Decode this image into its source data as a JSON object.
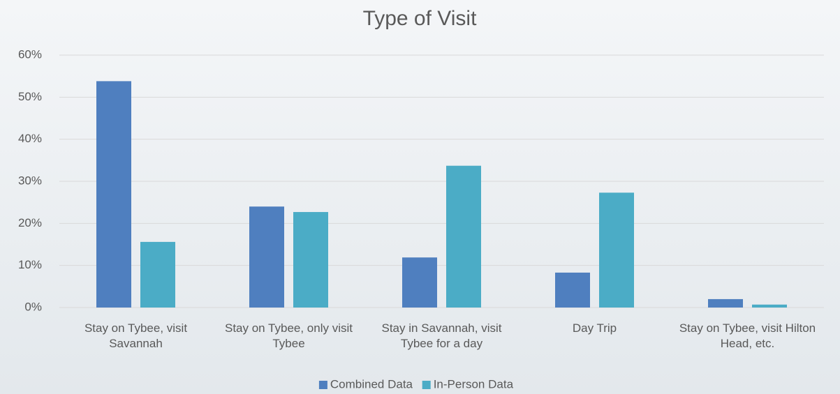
{
  "chart_data": {
    "type": "bar",
    "title": "Type of Visit",
    "categories": [
      "Stay on Tybee, visit Savannah",
      "Stay on Tybee, only visit Tybee",
      "Stay in Savannah, visit Tybee for a day",
      "Day Trip",
      "Stay on Tybee, visit Hilton Head, etc."
    ],
    "series": [
      {
        "name": "Combined Data",
        "color": "#4f7fbf",
        "values": [
          53.8,
          24,
          11.9,
          8.3,
          2
        ]
      },
      {
        "name": "In-Person Data",
        "color": "#4bacc6",
        "values": [
          15.6,
          22.7,
          33.7,
          27.3,
          0.7
        ]
      }
    ],
    "ylim": [
      0,
      60
    ],
    "yticks": [
      {
        "value": 0,
        "label": "0%"
      },
      {
        "value": 10,
        "label": "10%"
      },
      {
        "value": 20,
        "label": "20%"
      },
      {
        "value": 30,
        "label": "30%"
      },
      {
        "value": 40,
        "label": "40%"
      },
      {
        "value": 50,
        "label": "50%"
      },
      {
        "value": 60,
        "label": "60%"
      }
    ],
    "grid": true,
    "legend": "bottom"
  }
}
